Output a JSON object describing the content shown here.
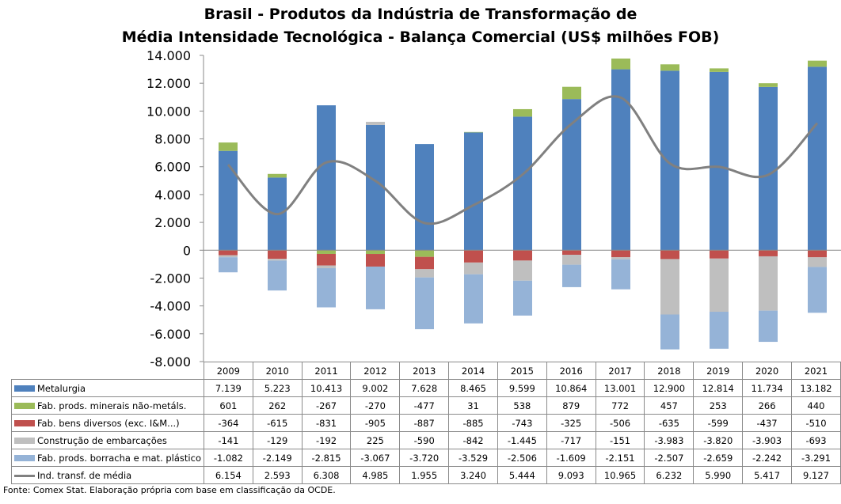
{
  "chart_data": {
    "type": "bar",
    "title": [
      "Brasil - Produtos da Indústria de Transformação de",
      "Média Intensidade Tecnológica - Balança Comercial (US$ milhões FOB)"
    ],
    "categories": [
      "2009",
      "2010",
      "2011",
      "2012",
      "2013",
      "2014",
      "2015",
      "2016",
      "2017",
      "2018",
      "2019",
      "2020",
      "2021"
    ],
    "ylim": [
      -8000,
      14000
    ],
    "yticks": [
      "14.000",
      "12.000",
      "10.000",
      "8.000",
      "6.000",
      "4.000",
      "2.000",
      "0",
      "-2.000",
      "-4.000",
      "-6.000",
      "-8.000"
    ],
    "stacked": true,
    "series": [
      {
        "name": "Metalurgia",
        "kind": "bar",
        "color": "#4f81bd",
        "values": [
          7139,
          5223,
          10413,
          9002,
          7628,
          8465,
          9599,
          10864,
          13001,
          12900,
          12814,
          11734,
          13182
        ],
        "labels": [
          "7.139",
          "5.223",
          "10.413",
          "9.002",
          "7.628",
          "8.465",
          "9.599",
          "10.864",
          "13.001",
          "12.900",
          "12.814",
          "11.734",
          "13.182"
        ]
      },
      {
        "name": "Fab. prods. minerais não-metáls.",
        "kind": "bar",
        "color": "#9bbb59",
        "values": [
          601,
          262,
          -267,
          -270,
          -477,
          31,
          538,
          879,
          772,
          457,
          253,
          266,
          440
        ],
        "labels": [
          "601",
          "262",
          "-267",
          "-270",
          "-477",
          "31",
          "538",
          "879",
          "772",
          "457",
          "253",
          "266",
          "440"
        ]
      },
      {
        "name": "Fab. bens diversos (exc. I&M...)",
        "kind": "bar",
        "color": "#c0504d",
        "values": [
          -364,
          -615,
          -831,
          -905,
          -887,
          -885,
          -743,
          -325,
          -506,
          -635,
          -599,
          -437,
          -510
        ],
        "labels": [
          "-364",
          "-615",
          "-831",
          "-905",
          "-887",
          "-885",
          "-743",
          "-325",
          "-506",
          "-635",
          "-599",
          "-437",
          "-510"
        ]
      },
      {
        "name": "Construção de embarcações",
        "kind": "bar",
        "color": "#bfbfbf",
        "values": [
          -141,
          -129,
          -192,
          225,
          -590,
          -842,
          -1445,
          -717,
          -151,
          -3983,
          -3820,
          -3903,
          -693
        ],
        "labels": [
          "-141",
          "-129",
          "-192",
          "225",
          "-590",
          "-842",
          "-1.445",
          "-717",
          "-151",
          "-3.983",
          "-3.820",
          "-3.903",
          "-693"
        ]
      },
      {
        "name": "Fab. prods. borracha e mat. plástico",
        "kind": "bar",
        "color": "#95b3d7",
        "values": [
          -1082,
          -2149,
          -2815,
          -3067,
          -3720,
          -3529,
          -2506,
          -1609,
          -2151,
          -2507,
          -2659,
          -2242,
          -3291
        ],
        "labels": [
          "-1.082",
          "-2.149",
          "-2.815",
          "-3.067",
          "-3.720",
          "-3.529",
          "-2.506",
          "-1.609",
          "-2.151",
          "-2.507",
          "-2.659",
          "-2.242",
          "-3.291"
        ]
      },
      {
        "name": "Ind. transf. de média",
        "kind": "line",
        "color": "#808080",
        "values": [
          6154,
          2593,
          6308,
          4985,
          1955,
          3240,
          5444,
          9093,
          10965,
          6232,
          5990,
          5417,
          9127
        ],
        "labels": [
          "6.154",
          "2.593",
          "6.308",
          "4.985",
          "1.955",
          "3.240",
          "5.444",
          "9.093",
          "10.965",
          "6.232",
          "5.990",
          "5.417",
          "9.127"
        ]
      }
    ]
  },
  "source": "Fonte: Comex Stat. Elaboração própria com base em classificação da OCDE."
}
